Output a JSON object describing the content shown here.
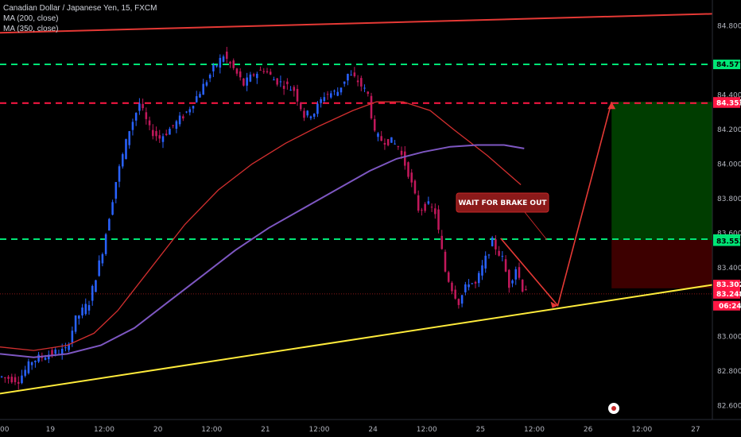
{
  "header": {
    "symbol": "Canadian Dollar / Japanese Yen, 15, FXCM",
    "ma1": "MA (200, close)",
    "ma2": "MA (350, close)"
  },
  "annotation": {
    "text": "WAIT FOR BRAKE OUT"
  },
  "colors": {
    "background": "#000000",
    "candle_up": "#2962ff",
    "candle_down": "#c2185b",
    "ma200": "#d32f2f",
    "ma350": "#7e57c2",
    "trendline_support": "#ffeb3b",
    "trendline_top": "#e53935",
    "green_level": "#00e676",
    "red_level": "#ff1744",
    "target_zone": "#003d00",
    "stop_zone": "#3d0000",
    "arrow": "#e53935"
  },
  "chart_data": {
    "type": "line",
    "title": "Canadian Dollar / Japanese Yen, 15, FXCM",
    "ylim": [
      82.52,
      84.95
    ],
    "y_ticks": [
      "84.800",
      "84.400",
      "84.200",
      "84.000",
      "83.800",
      "83.600",
      "83.400",
      "83.000",
      "82.800",
      "82.600"
    ],
    "x_ticks": [
      "00",
      "19",
      "12:00",
      "20",
      "12:00",
      "21",
      "12:00",
      "24",
      "12:00",
      "25",
      "12:00",
      "26",
      "12:00",
      "27"
    ],
    "x_tick_index": [
      0,
      15,
      31,
      47,
      63,
      79,
      95,
      111,
      127,
      143,
      159,
      175,
      191,
      207
    ],
    "price_series": [
      {
        "name": "price (approx.)",
        "points": [
          [
            0,
            82.77
          ],
          [
            6,
            82.75
          ],
          [
            10,
            82.86
          ],
          [
            15,
            82.9
          ],
          [
            20,
            82.92
          ],
          [
            23,
            83.1
          ],
          [
            27,
            83.2
          ],
          [
            31,
            83.5
          ],
          [
            35,
            83.9
          ],
          [
            39,
            84.2
          ],
          [
            42,
            84.35
          ],
          [
            45,
            84.2
          ],
          [
            48,
            84.15
          ],
          [
            52,
            84.22
          ],
          [
            56,
            84.3
          ],
          [
            60,
            84.42
          ],
          [
            64,
            84.55
          ],
          [
            67,
            84.63
          ],
          [
            70,
            84.55
          ],
          [
            73,
            84.46
          ],
          [
            76,
            84.52
          ],
          [
            79,
            84.55
          ],
          [
            82,
            84.49
          ],
          [
            85,
            84.46
          ],
          [
            88,
            84.43
          ],
          [
            91,
            84.28
          ],
          [
            94,
            84.3
          ],
          [
            97,
            84.4
          ],
          [
            101,
            84.42
          ],
          [
            104,
            84.52
          ],
          [
            107,
            84.48
          ],
          [
            110,
            84.4
          ],
          [
            112,
            84.17
          ],
          [
            114,
            84.14
          ],
          [
            117,
            84.13
          ],
          [
            119,
            84.1
          ],
          [
            122,
            83.95
          ],
          [
            125,
            83.74
          ],
          [
            128,
            83.76
          ],
          [
            130,
            83.72
          ],
          [
            133,
            83.38
          ],
          [
            135,
            83.28
          ],
          [
            137,
            83.2
          ],
          [
            140,
            83.32
          ],
          [
            142,
            83.3
          ],
          [
            145,
            83.45
          ],
          [
            147,
            83.55
          ],
          [
            150,
            83.45
          ],
          [
            152,
            83.3
          ],
          [
            154,
            83.4
          ],
          [
            156,
            83.28
          ]
        ]
      }
    ],
    "series": [
      {
        "name": "MA (200, close)",
        "points": [
          [
            0,
            82.94
          ],
          [
            10,
            82.92
          ],
          [
            20,
            82.95
          ],
          [
            28,
            83.02
          ],
          [
            35,
            83.15
          ],
          [
            45,
            83.4
          ],
          [
            55,
            83.65
          ],
          [
            65,
            83.85
          ],
          [
            75,
            84.0
          ],
          [
            85,
            84.12
          ],
          [
            95,
            84.22
          ],
          [
            105,
            84.31
          ],
          [
            112,
            84.36
          ],
          [
            120,
            84.36
          ],
          [
            128,
            84.31
          ],
          [
            135,
            84.2
          ],
          [
            145,
            84.05
          ],
          [
            155,
            83.88
          ]
        ]
      },
      {
        "name": "MA (350, close)",
        "points": [
          [
            0,
            82.9
          ],
          [
            10,
            82.88
          ],
          [
            20,
            82.9
          ],
          [
            30,
            82.95
          ],
          [
            40,
            83.05
          ],
          [
            50,
            83.2
          ],
          [
            60,
            83.35
          ],
          [
            70,
            83.5
          ],
          [
            80,
            83.63
          ],
          [
            90,
            83.74
          ],
          [
            100,
            83.85
          ],
          [
            110,
            83.96
          ],
          [
            118,
            84.03
          ],
          [
            126,
            84.07
          ],
          [
            134,
            84.1
          ],
          [
            142,
            84.11
          ],
          [
            150,
            84.11
          ],
          [
            156,
            84.09
          ]
        ]
      }
    ],
    "levels": [
      {
        "price": 84.577,
        "label": "84.577",
        "color": "#00e676"
      },
      {
        "price": 84.36,
        "label": "84.360",
        "color": "#ff1744"
      },
      {
        "price": 84.353,
        "label": "84.353",
        "color": "#ff1744"
      },
      {
        "price": 83.565,
        "label": "83.565",
        "color": "#00e676"
      },
      {
        "price": 83.553,
        "label": "83.553",
        "color": "#00e676"
      },
      {
        "price": 83.302,
        "label": "83.302",
        "color": "#ff1744"
      },
      {
        "price": 83.248,
        "label": "83.248",
        "color": "#ff1744"
      }
    ],
    "countdown": "06:24",
    "support_line": [
      [
        0,
        82.67
      ],
      [
        212,
        83.3
      ]
    ],
    "top_line": [
      [
        0,
        84.76
      ],
      [
        212,
        84.87
      ]
    ],
    "projection": [
      [
        149,
        83.57
      ],
      [
        166,
        83.18
      ],
      [
        182,
        84.36
      ]
    ],
    "target_zone": {
      "x": [
        182,
        212
      ],
      "y": [
        83.56,
        84.36
      ]
    },
    "stop_zone": {
      "x": [
        182,
        212
      ],
      "y": [
        83.28,
        83.56
      ]
    }
  }
}
